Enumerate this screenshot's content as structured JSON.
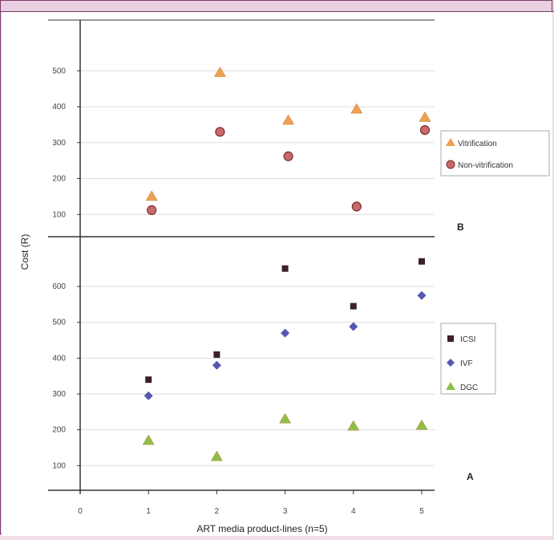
{
  "chart_data": [
    {
      "panel": "B",
      "type": "scatter",
      "panel_label": "B",
      "x": [
        1,
        2,
        3,
        4,
        5
      ],
      "ylim": [
        0,
        600
      ],
      "y_ticks": [
        100,
        200,
        300,
        400,
        500
      ],
      "grid": true,
      "legend_position": "right",
      "series": [
        {
          "name": "Vitrification",
          "marker": "triangle",
          "color": "#f0a050",
          "values": [
            150,
            495,
            362,
            393,
            370
          ]
        },
        {
          "name": "Non-vitrification",
          "marker": "circle",
          "color": "#c96a6a",
          "values": [
            112,
            330,
            262,
            122,
            335
          ]
        }
      ]
    },
    {
      "panel": "A",
      "type": "scatter",
      "panel_label": "A",
      "x": [
        1,
        2,
        3,
        4,
        5
      ],
      "ylim": [
        0,
        700
      ],
      "y_ticks": [
        100,
        200,
        300,
        400,
        500,
        600
      ],
      "x_ticks": [
        "0",
        "1",
        "2",
        "3",
        "4",
        "5"
      ],
      "xlabel": "ART media product-lines (n=5)",
      "grid": true,
      "legend_position": "right",
      "series": [
        {
          "name": "ICSI",
          "marker": "square",
          "color": "#3b1f2b",
          "values": [
            340,
            410,
            650,
            545,
            670
          ]
        },
        {
          "name": "IVF",
          "marker": "diamond",
          "color": "#5558b0",
          "values": [
            295,
            380,
            470,
            488,
            575
          ]
        },
        {
          "name": "DGC",
          "marker": "triangle",
          "color": "#8fbf4a",
          "values": [
            170,
            125,
            230,
            210,
            212
          ]
        }
      ]
    }
  ],
  "shared_ylabel": "Cost (R)"
}
